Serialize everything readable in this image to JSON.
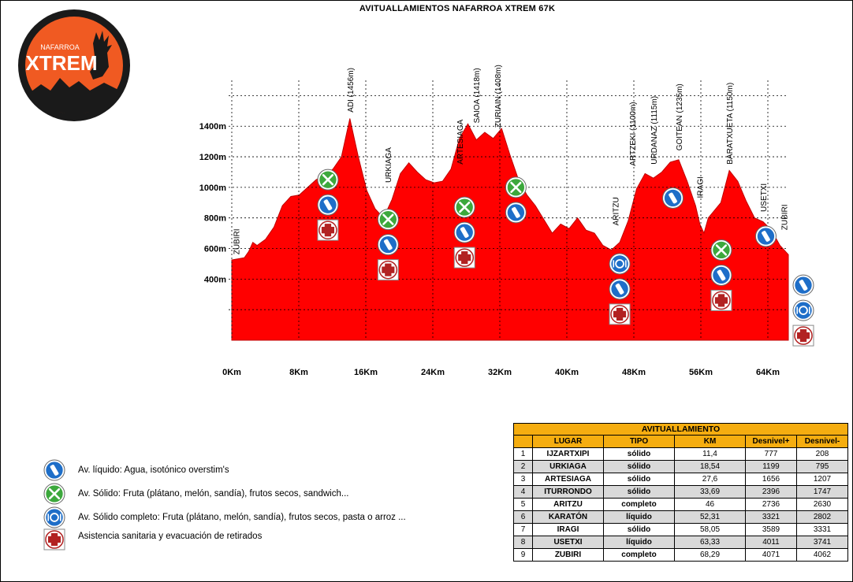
{
  "title": "AVITUALLAMIENTOS  NAFARROA XTREM 67K",
  "logo": {
    "top_text": "NAFARROA",
    "main_text": "XTREM"
  },
  "colors": {
    "profile": "#ff0000",
    "table_header": "#f5ad10",
    "logo_orange": "#f05a22",
    "liquid": "#1e6ec8",
    "solid": "#3ca83c",
    "medical": "#b22222"
  },
  "chart_data": {
    "type": "area",
    "title": "AVITUALLAMIENTOS  NAFARROA XTREM 67K",
    "xlabel": "",
    "ylabel": "",
    "xlim": [
      0,
      66
    ],
    "ylim": [
      0,
      1700
    ],
    "grid": true,
    "x_ticks": [
      {
        "v": 0,
        "label": "0Km"
      },
      {
        "v": 8,
        "label": "8Km"
      },
      {
        "v": 16,
        "label": "16Km"
      },
      {
        "v": 24,
        "label": "24Km"
      },
      {
        "v": 32,
        "label": "32Km"
      },
      {
        "v": 40,
        "label": "40Km"
      },
      {
        "v": 48,
        "label": "48Km"
      },
      {
        "v": 56,
        "label": "56Km"
      },
      {
        "v": 64,
        "label": "64Km"
      }
    ],
    "y_ticks": [
      {
        "v": 400,
        "label": "400m"
      },
      {
        "v": 600,
        "label": "600m"
      },
      {
        "v": 800,
        "label": "800m"
      },
      {
        "v": 1000,
        "label": "1000m"
      },
      {
        "v": 1200,
        "label": "1200m"
      },
      {
        "v": 1400,
        "label": "1400m"
      }
    ],
    "y_gridlines": [
      200,
      400,
      600,
      800,
      1000,
      1200,
      1400,
      1600
    ],
    "profile": [
      [
        0,
        525
      ],
      [
        1.5,
        540
      ],
      [
        2,
        580
      ],
      [
        2.5,
        640
      ],
      [
        3,
        620
      ],
      [
        4,
        660
      ],
      [
        5,
        740
      ],
      [
        6,
        880
      ],
      [
        7,
        940
      ],
      [
        8,
        950
      ],
      [
        9,
        1000
      ],
      [
        10,
        1050
      ],
      [
        11,
        1080
      ],
      [
        12,
        1120
      ],
      [
        13,
        1200
      ],
      [
        14,
        1450
      ],
      [
        15,
        1200
      ],
      [
        16,
        980
      ],
      [
        17,
        860
      ],
      [
        18,
        800
      ],
      [
        19,
        920
      ],
      [
        20,
        1090
      ],
      [
        21,
        1160
      ],
      [
        22,
        1100
      ],
      [
        23,
        1050
      ],
      [
        24,
        1030
      ],
      [
        25,
        1040
      ],
      [
        26,
        1120
      ],
      [
        27,
        1320
      ],
      [
        28,
        1415
      ],
      [
        29,
        1310
      ],
      [
        30,
        1360
      ],
      [
        31,
        1320
      ],
      [
        32,
        1385
      ],
      [
        33,
        1210
      ],
      [
        34,
        1050
      ],
      [
        35,
        950
      ],
      [
        36,
        880
      ],
      [
        37,
        790
      ],
      [
        38,
        700
      ],
      [
        39,
        760
      ],
      [
        40,
        730
      ],
      [
        41,
        800
      ],
      [
        42,
        720
      ],
      [
        43,
        700
      ],
      [
        44,
        620
      ],
      [
        45,
        590
      ],
      [
        46,
        640
      ],
      [
        47,
        780
      ],
      [
        48,
        990
      ],
      [
        49,
        1090
      ],
      [
        50,
        1060
      ],
      [
        51,
        1100
      ],
      [
        52,
        1165
      ],
      [
        53,
        1180
      ],
      [
        54,
        1040
      ],
      [
        55,
        880
      ],
      [
        55.5,
        760
      ],
      [
        56,
        700
      ],
      [
        56.5,
        800
      ],
      [
        58,
        900
      ],
      [
        59,
        1110
      ],
      [
        60,
        1040
      ],
      [
        61,
        910
      ],
      [
        62,
        800
      ],
      [
        63,
        775
      ],
      [
        64,
        720
      ],
      [
        65,
        620
      ],
      [
        66,
        560
      ]
    ],
    "places": [
      {
        "name": "ZUBIRI",
        "x": 0.5,
        "ylab": 560
      },
      {
        "name": "ADI (1456m)",
        "x": 14,
        "ylab": 1490
      },
      {
        "name": "URKIAGA",
        "x": 18.5,
        "ylab": 1030
      },
      {
        "name": "ARTESIAGA",
        "x": 27,
        "ylab": 1150
      },
      {
        "name": "SAIOA (1418m)",
        "x": 29,
        "ylab": 1420
      },
      {
        "name": "ZURIAIN (1408m)",
        "x": 31.5,
        "ylab": 1390
      },
      {
        "name": "ARITZU",
        "x": 45.5,
        "ylab": 750
      },
      {
        "name": "ARTZEKI (1100m)",
        "x": 47.5,
        "ylab": 1140
      },
      {
        "name": "URDANAZ (1115m)",
        "x": 50,
        "ylab": 1150
      },
      {
        "name": "GOITEAN (1235m)",
        "x": 53,
        "ylab": 1240
      },
      {
        "name": "IRAGI",
        "x": 55.5,
        "ylab": 930
      },
      {
        "name": "BARATXUETA (1150m)",
        "x": 59,
        "ylab": 1150
      },
      {
        "name": "USETXI",
        "x": 63,
        "ylab": 840
      },
      {
        "name": "ZUBIRI",
        "x": 65.5,
        "ylab": 720
      }
    ],
    "stations": [
      {
        "x": 11.4,
        "icons": [
          "solid",
          "liquid",
          "medical"
        ],
        "top": 1050
      },
      {
        "x": 18.54,
        "icons": [
          "solid",
          "liquid",
          "medical"
        ],
        "top": 790
      },
      {
        "x": 27.6,
        "icons": [
          "solid",
          "liquid",
          "medical"
        ],
        "top": 870
      },
      {
        "x": 33.69,
        "icons": [
          "solid",
          "liquid"
        ],
        "top": 1000
      },
      {
        "x": 46,
        "icons": [
          "complete",
          "liquid",
          "medical"
        ],
        "top": 500
      },
      {
        "x": 52.31,
        "icons": [
          "liquid"
        ],
        "top": 930
      },
      {
        "x": 58.05,
        "icons": [
          "solid",
          "liquid",
          "medical"
        ],
        "top": 590
      },
      {
        "x": 63.33,
        "icons": [
          "liquid"
        ],
        "top": 680
      },
      {
        "x": 68.29,
        "icons": [
          "liquid",
          "complete",
          "medical"
        ],
        "top": 360
      }
    ]
  },
  "legend": [
    {
      "icon": "liquid",
      "text": "Av. líquido: Agua, isotónico overstim's"
    },
    {
      "icon": "solid",
      "text": "Av. Sólido: Fruta (plátano, melón, sandía), frutos secos, sandwich..."
    },
    {
      "icon": "complete",
      "text": "Av. Sólido completo: Fruta (plátano, melón, sandía), frutos secos, pasta o arroz ..."
    },
    {
      "icon": "medical",
      "text": "Asistencia sanitaria y evacuación de retirados"
    }
  ],
  "table": {
    "title": "AVITUALLAMIENTO",
    "headers": [
      "",
      "LUGAR",
      "TIPO",
      "KM",
      "Desnivel+",
      "Desnivel-"
    ],
    "rows": [
      [
        "1",
        "IJZARTXIPI",
        "sólido",
        "11,4",
        "777",
        "208"
      ],
      [
        "2",
        "URKIAGA",
        "sólido",
        "18,54",
        "1199",
        "795"
      ],
      [
        "3",
        "ARTESIAGA",
        "sólido",
        "27,6",
        "1656",
        "1207"
      ],
      [
        "4",
        "ITURRONDO",
        "sólido",
        "33,69",
        "2396",
        "1747"
      ],
      [
        "5",
        "ARITZU",
        "completo",
        "46",
        "2736",
        "2630"
      ],
      [
        "6",
        "KARATÓN",
        "líquido",
        "52,31",
        "3321",
        "2802"
      ],
      [
        "7",
        "IRAGI",
        "sólido",
        "58,05",
        "3589",
        "3331"
      ],
      [
        "8",
        "USETXI",
        "líquido",
        "63,33",
        "4011",
        "3741"
      ],
      [
        "9",
        "ZUBIRI",
        "completo",
        "68,29",
        "4071",
        "4062"
      ]
    ]
  }
}
